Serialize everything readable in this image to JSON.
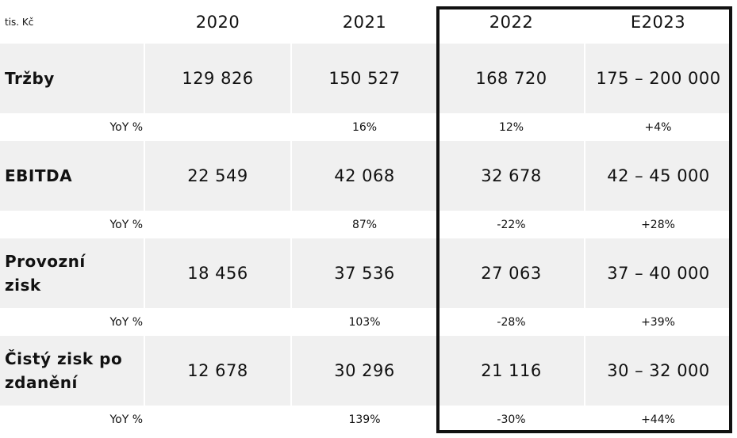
{
  "unit": "tis. Kč",
  "years": [
    "2020",
    "2021",
    "2022",
    "E2023"
  ],
  "yoy_label": "YoY %",
  "rows": [
    {
      "label_lines": [
        "Tržby",
        ""
      ],
      "values": [
        "129 826",
        "150 527",
        "168 720",
        "175 – 200 000"
      ],
      "yoy": [
        "",
        "16%",
        "12%",
        "+4%"
      ]
    },
    {
      "label_lines": [
        "EBITDA",
        ""
      ],
      "values": [
        "22 549",
        "42 068",
        "32 678",
        "42 – 45 000"
      ],
      "yoy": [
        "",
        "87%",
        "-22%",
        "+28%"
      ]
    },
    {
      "label_lines": [
        "Provozní",
        "zisk"
      ],
      "values": [
        "18 456",
        "37 536",
        "27 063",
        "37 – 40 000"
      ],
      "yoy": [
        "",
        "103%",
        "-28%",
        "+39%"
      ]
    },
    {
      "label_lines": [
        "Čistý zisk po",
        "zdanění"
      ],
      "values": [
        "12 678",
        "30 296",
        "21 116",
        "30 – 32 000"
      ],
      "yoy": [
        "",
        "139%",
        "-30%",
        "+44%"
      ]
    }
  ],
  "highlight_columns": [
    "2022",
    "E2023"
  ]
}
